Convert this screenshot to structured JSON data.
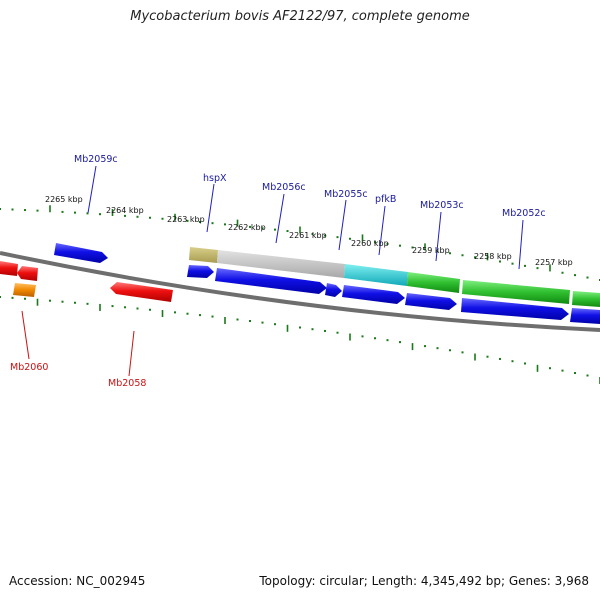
{
  "title": "Mycobacterium bovis AF2122/97, complete genome",
  "footer": {
    "accession": "Accession: NC_002945",
    "summary": "Topology: circular; Length: 4,345,492 bp; Genes: 3,968"
  },
  "colors": {
    "forward_gene": "#1010e0",
    "reverse_gene": "#e01010",
    "orange_gene": "#f08800",
    "backbone": "#777777",
    "ticks": "#1a7a1a",
    "label_forward": "#1a1aa0",
    "label_reverse": "#cc1111"
  },
  "ticks": [
    "2265 kbp",
    "2264 kbp",
    "2263 kbp",
    "2262 kbp",
    "2261 kbp",
    "2260 kbp",
    "2259 kbp",
    "2258 kbp",
    "2257 kbp"
  ],
  "gene_labels_top": [
    "Mb2059c",
    "hspX",
    "Mb2056c",
    "Mb2055c",
    "pfkB",
    "Mb2053c",
    "Mb2052c"
  ],
  "gene_labels_bottom": [
    "Mb2060",
    "Mb2058"
  ]
}
